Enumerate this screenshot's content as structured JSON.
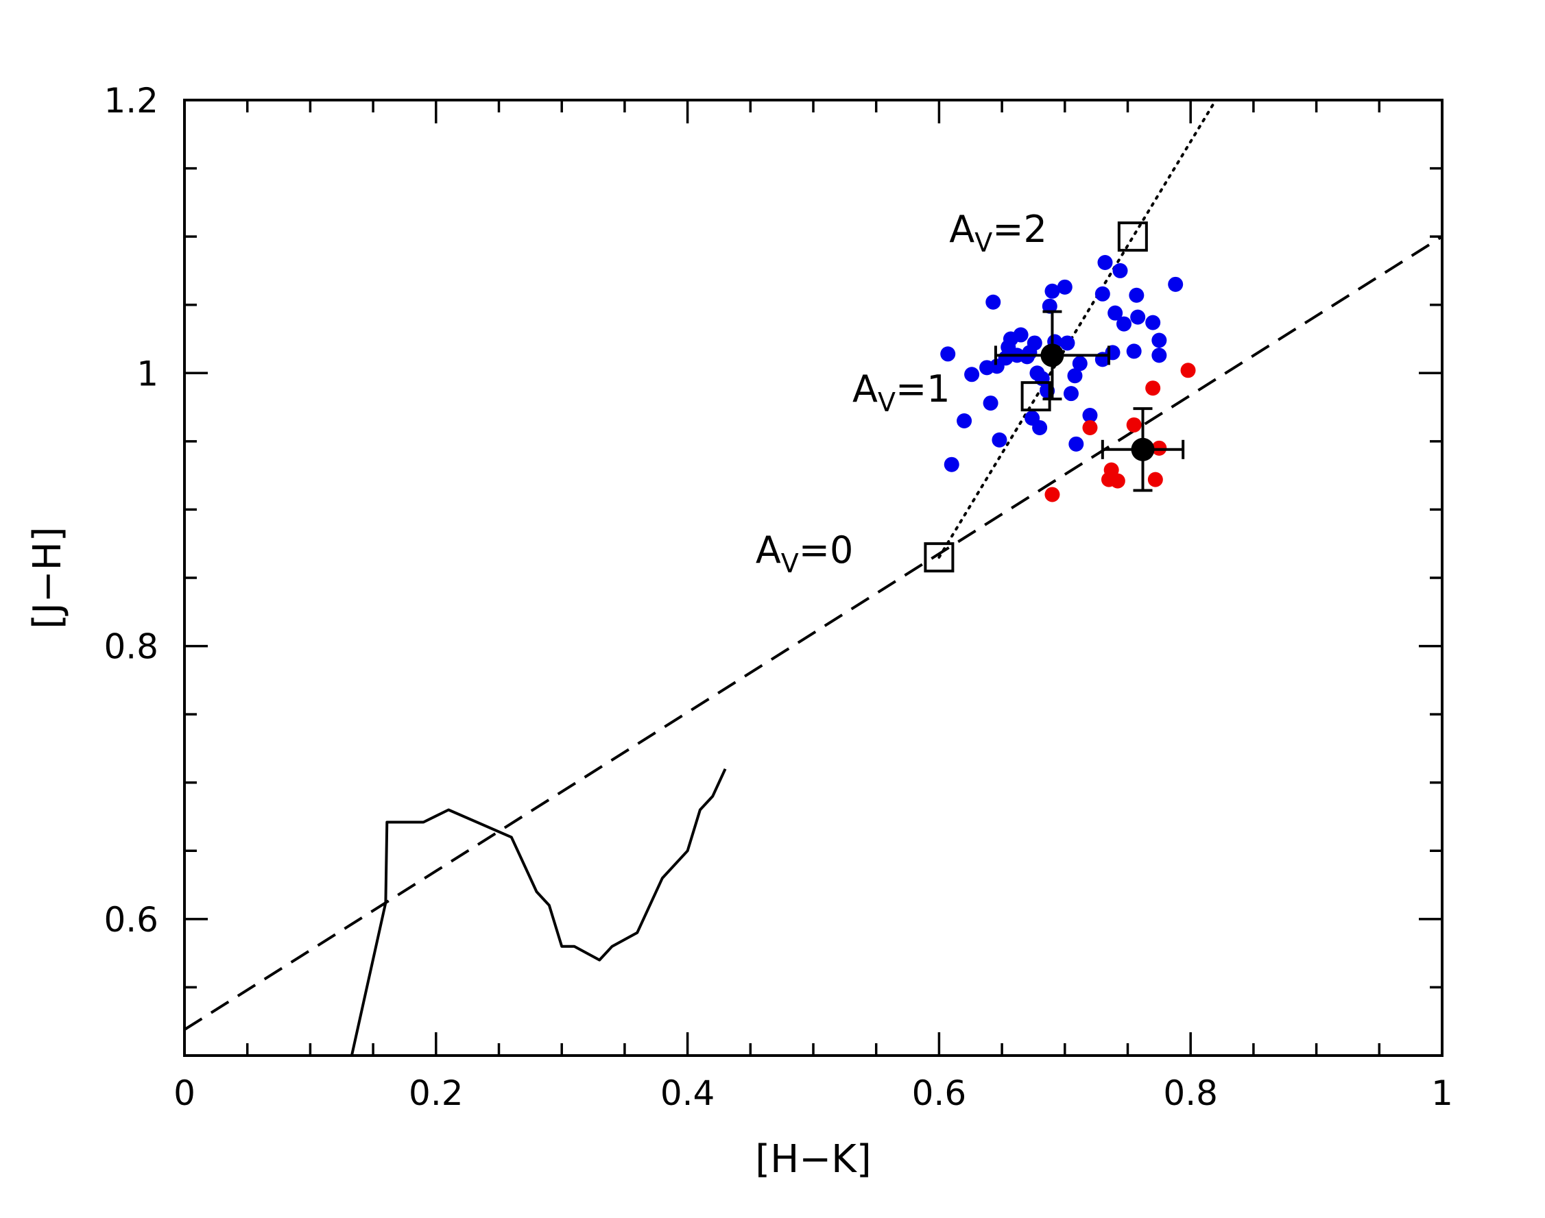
{
  "chart_data": {
    "type": "scatter",
    "xlabel": "[H−K]",
    "ylabel": "[J−H]",
    "xlim": [
      0,
      1
    ],
    "ylim": [
      0.5,
      1.2
    ],
    "x_ticks": [
      {
        "value": 0,
        "label": "0"
      },
      {
        "value": 0.2,
        "label": "0.2"
      },
      {
        "value": 0.4,
        "label": "0.4"
      },
      {
        "value": 0.6,
        "label": "0.6"
      },
      {
        "value": 0.8,
        "label": "0.8"
      },
      {
        "value": 1,
        "label": "1"
      }
    ],
    "y_ticks": [
      {
        "value": 0.6,
        "label": "0.6"
      },
      {
        "value": 0.8,
        "label": "0.8"
      },
      {
        "value": 1,
        "label": "1"
      },
      {
        "value": 1.2,
        "label": "1.2"
      }
    ],
    "grid": false,
    "series": [
      {
        "kind": "scatter",
        "color": "#0000ee",
        "points": [
          [
            0.607,
            1.014
          ],
          [
            0.61,
            0.933
          ],
          [
            0.62,
            0.965
          ],
          [
            0.626,
            0.999
          ],
          [
            0.638,
            1.004
          ],
          [
            0.641,
            0.978
          ],
          [
            0.643,
            1.052
          ],
          [
            0.646,
            1.005
          ],
          [
            0.648,
            0.951
          ],
          [
            0.653,
            1.011
          ],
          [
            0.655,
            1.019
          ],
          [
            0.657,
            1.025
          ],
          [
            0.662,
            1.013
          ],
          [
            0.665,
            1.028
          ],
          [
            0.67,
            1.012
          ],
          [
            0.672,
            1.015
          ],
          [
            0.674,
            0.967
          ],
          [
            0.676,
            1.022
          ],
          [
            0.678,
            1.0
          ],
          [
            0.68,
            0.96
          ],
          [
            0.682,
            0.996
          ],
          [
            0.686,
            0.987
          ],
          [
            0.688,
            1.049
          ],
          [
            0.69,
            1.06
          ],
          [
            0.69,
            1.012
          ],
          [
            0.692,
            1.023
          ],
          [
            0.7,
            1.063
          ],
          [
            0.702,
            1.022
          ],
          [
            0.705,
            0.985
          ],
          [
            0.708,
            0.998
          ],
          [
            0.709,
            0.948
          ],
          [
            0.712,
            1.007
          ],
          [
            0.72,
            0.969
          ],
          [
            0.73,
            1.058
          ],
          [
            0.73,
            1.01
          ],
          [
            0.732,
            1.081
          ],
          [
            0.738,
            1.015
          ],
          [
            0.74,
            1.044
          ],
          [
            0.744,
            1.075
          ],
          [
            0.747,
            1.036
          ],
          [
            0.755,
            1.016
          ],
          [
            0.757,
            1.057
          ],
          [
            0.758,
            1.041
          ],
          [
            0.77,
            1.037
          ],
          [
            0.775,
            1.024
          ],
          [
            0.775,
            1.013
          ],
          [
            0.788,
            1.065
          ]
        ]
      },
      {
        "kind": "scatter",
        "color": "#ee0000",
        "points": [
          [
            0.69,
            0.911
          ],
          [
            0.72,
            0.96
          ],
          [
            0.735,
            0.922
          ],
          [
            0.737,
            0.929
          ],
          [
            0.742,
            0.921
          ],
          [
            0.755,
            0.962
          ],
          [
            0.77,
            0.989
          ],
          [
            0.772,
            0.922
          ],
          [
            0.775,
            0.945
          ],
          [
            0.798,
            1.002
          ]
        ]
      }
    ],
    "means": [
      {
        "x": 0.69,
        "y": 1.013,
        "xerr": 0.045,
        "yerr": 0.032
      },
      {
        "x": 0.762,
        "y": 0.944,
        "xerr": 0.032,
        "yerr": 0.03
      }
    ],
    "dashed_line": {
      "points": [
        [
          0,
          0.519
        ],
        [
          1,
          1.1
        ]
      ]
    },
    "dotted_line": {
      "points": [
        [
          0.6,
          0.865
        ],
        [
          0.82,
          1.2
        ]
      ]
    },
    "reddening_markers": [
      {
        "x": 0.6,
        "y": 0.865,
        "label": "A",
        "sub": "V",
        "rest": "=0"
      },
      {
        "x": 0.677,
        "y": 0.983,
        "label": "A",
        "sub": "V",
        "rest": "=1"
      },
      {
        "x": 0.754,
        "y": 1.1,
        "label": "A",
        "sub": "V",
        "rest": "=2"
      }
    ],
    "solid_curve": {
      "points": [
        [
          0.133,
          0.5
        ],
        [
          0.16,
          0.612
        ],
        [
          0.161,
          0.671
        ],
        [
          0.19,
          0.671
        ],
        [
          0.21,
          0.68
        ],
        [
          0.26,
          0.66
        ],
        [
          0.28,
          0.62
        ],
        [
          0.29,
          0.61
        ],
        [
          0.3,
          0.58
        ],
        [
          0.31,
          0.58
        ],
        [
          0.33,
          0.57
        ],
        [
          0.34,
          0.58
        ],
        [
          0.36,
          0.59
        ],
        [
          0.38,
          0.63
        ],
        [
          0.4,
          0.65
        ],
        [
          0.41,
          0.68
        ],
        [
          0.42,
          0.69
        ],
        [
          0.43,
          0.71
        ]
      ]
    }
  }
}
